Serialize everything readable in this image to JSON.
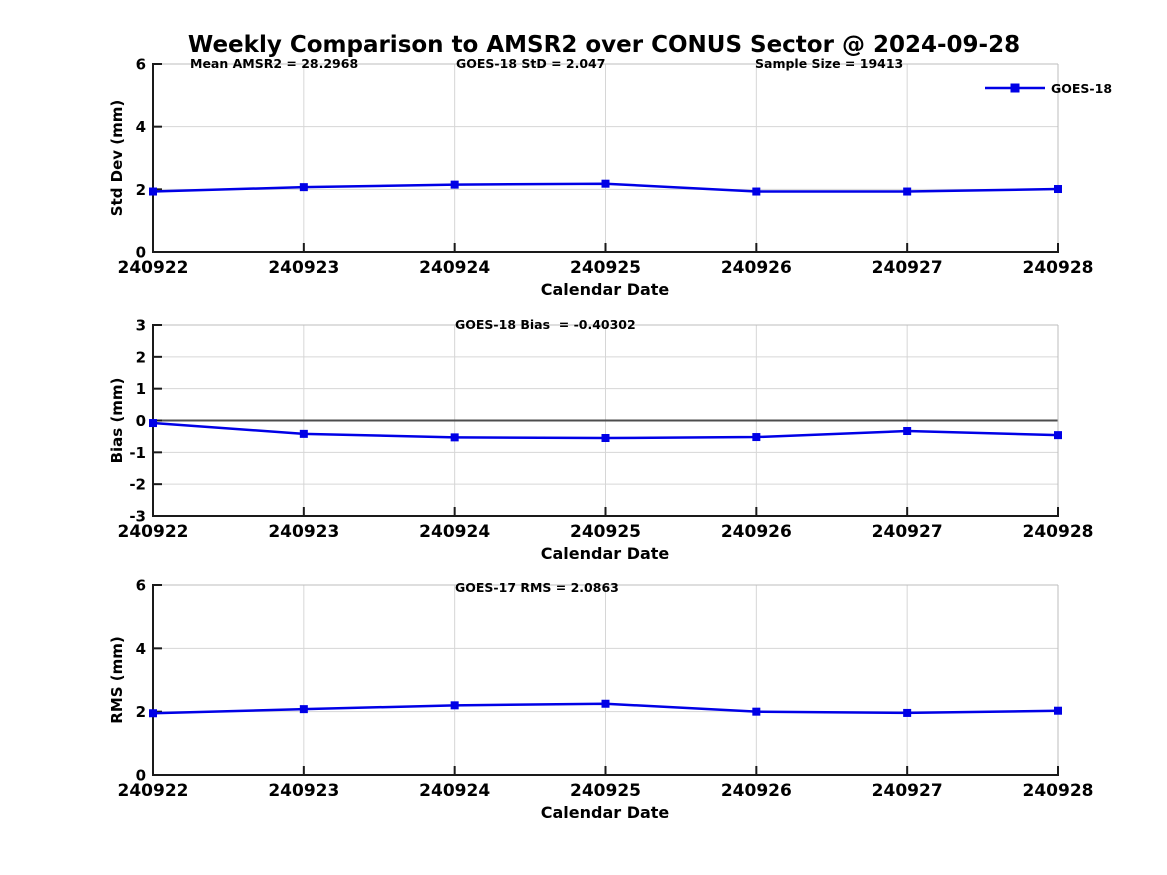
{
  "title": "Weekly Comparison to AMSR2 over CONUS Sector @ 2024-09-28",
  "legend": {
    "label": "GOES-18"
  },
  "colors": {
    "line": "#0000E6",
    "grid": "#D6D6D6",
    "box": "#BDBDBD",
    "axis": "#1A1A1A",
    "zero_line": "#4D4D4D",
    "text": "#000000",
    "background": "#FFFFFF"
  },
  "chart_data": [
    {
      "type": "line",
      "annotations": [
        "Mean AMSR2 = 28.2968",
        "GOES-18 StD = 2.047",
        "Sample Size = 19413"
      ],
      "ylabel": "Std Dev (mm)",
      "xlabel": "Calendar Date",
      "categories": [
        "240922",
        "240923",
        "240924",
        "240925",
        "240926",
        "240927",
        "240928"
      ],
      "yticks": [
        0,
        2,
        4,
        6
      ],
      "ylim": [
        0,
        6
      ],
      "grid": true,
      "legend_position": "top-right",
      "series": [
        {
          "name": "GOES-18",
          "marker": "square",
          "values": [
            1.93,
            2.07,
            2.15,
            2.18,
            1.93,
            1.93,
            2.01
          ]
        }
      ]
    },
    {
      "type": "line",
      "annotations": [
        "GOES-18 Bias  = -0.40302"
      ],
      "ylabel": "Bias (mm)",
      "xlabel": "Calendar Date",
      "categories": [
        "240922",
        "240923",
        "240924",
        "240925",
        "240926",
        "240927",
        "240928"
      ],
      "yticks": [
        -3,
        -2,
        -1,
        0,
        1,
        2,
        3
      ],
      "ylim": [
        -3,
        3
      ],
      "grid": true,
      "zero_line": true,
      "series": [
        {
          "name": "GOES-18",
          "marker": "square",
          "values": [
            -0.08,
            -0.42,
            -0.53,
            -0.55,
            -0.52,
            -0.33,
            -0.46
          ]
        }
      ]
    },
    {
      "type": "line",
      "annotations": [
        "GOES-17 RMS = 2.0863"
      ],
      "ylabel": "RMS (mm)",
      "xlabel": "Calendar Date",
      "categories": [
        "240922",
        "240923",
        "240924",
        "240925",
        "240926",
        "240927",
        "240928"
      ],
      "yticks": [
        0,
        2,
        4,
        6
      ],
      "ylim": [
        0,
        6
      ],
      "grid": true,
      "series": [
        {
          "name": "GOES-18",
          "marker": "square",
          "values": [
            1.95,
            2.08,
            2.2,
            2.25,
            2.0,
            1.96,
            2.03
          ]
        }
      ]
    }
  ]
}
